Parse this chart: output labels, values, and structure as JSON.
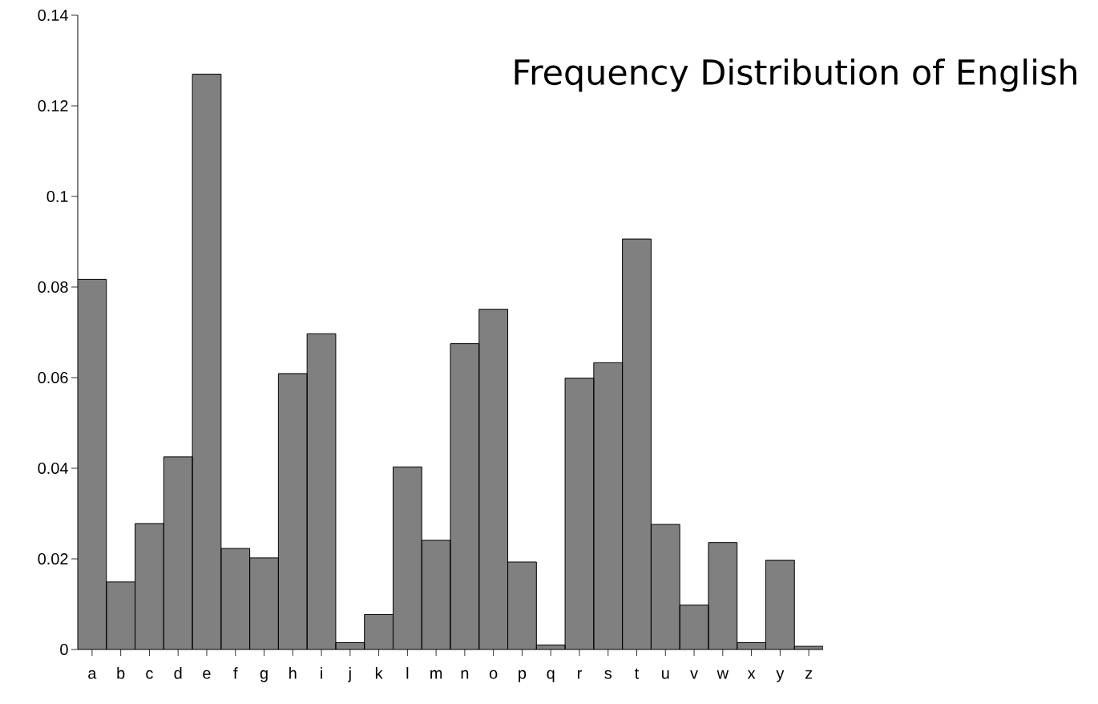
{
  "chart_data": {
    "type": "bar",
    "title": "Frequency Distribution of English",
    "categories": [
      "a",
      "b",
      "c",
      "d",
      "e",
      "f",
      "g",
      "h",
      "i",
      "j",
      "k",
      "l",
      "m",
      "n",
      "o",
      "p",
      "q",
      "r",
      "s",
      "t",
      "u",
      "v",
      "w",
      "x",
      "y",
      "z"
    ],
    "values": [
      0.0817,
      0.0149,
      0.0278,
      0.0425,
      0.127,
      0.0223,
      0.0202,
      0.0609,
      0.0697,
      0.0015,
      0.0077,
      0.0403,
      0.0241,
      0.0675,
      0.0751,
      0.0193,
      0.001,
      0.0599,
      0.0633,
      0.0906,
      0.0276,
      0.0098,
      0.0236,
      0.0015,
      0.0197,
      0.0007
    ],
    "color": "#808080",
    "ylim": [
      0,
      0.14
    ],
    "yticks": [
      0,
      0.02,
      0.04,
      0.06,
      0.08,
      0.1,
      0.12,
      0.14
    ]
  }
}
